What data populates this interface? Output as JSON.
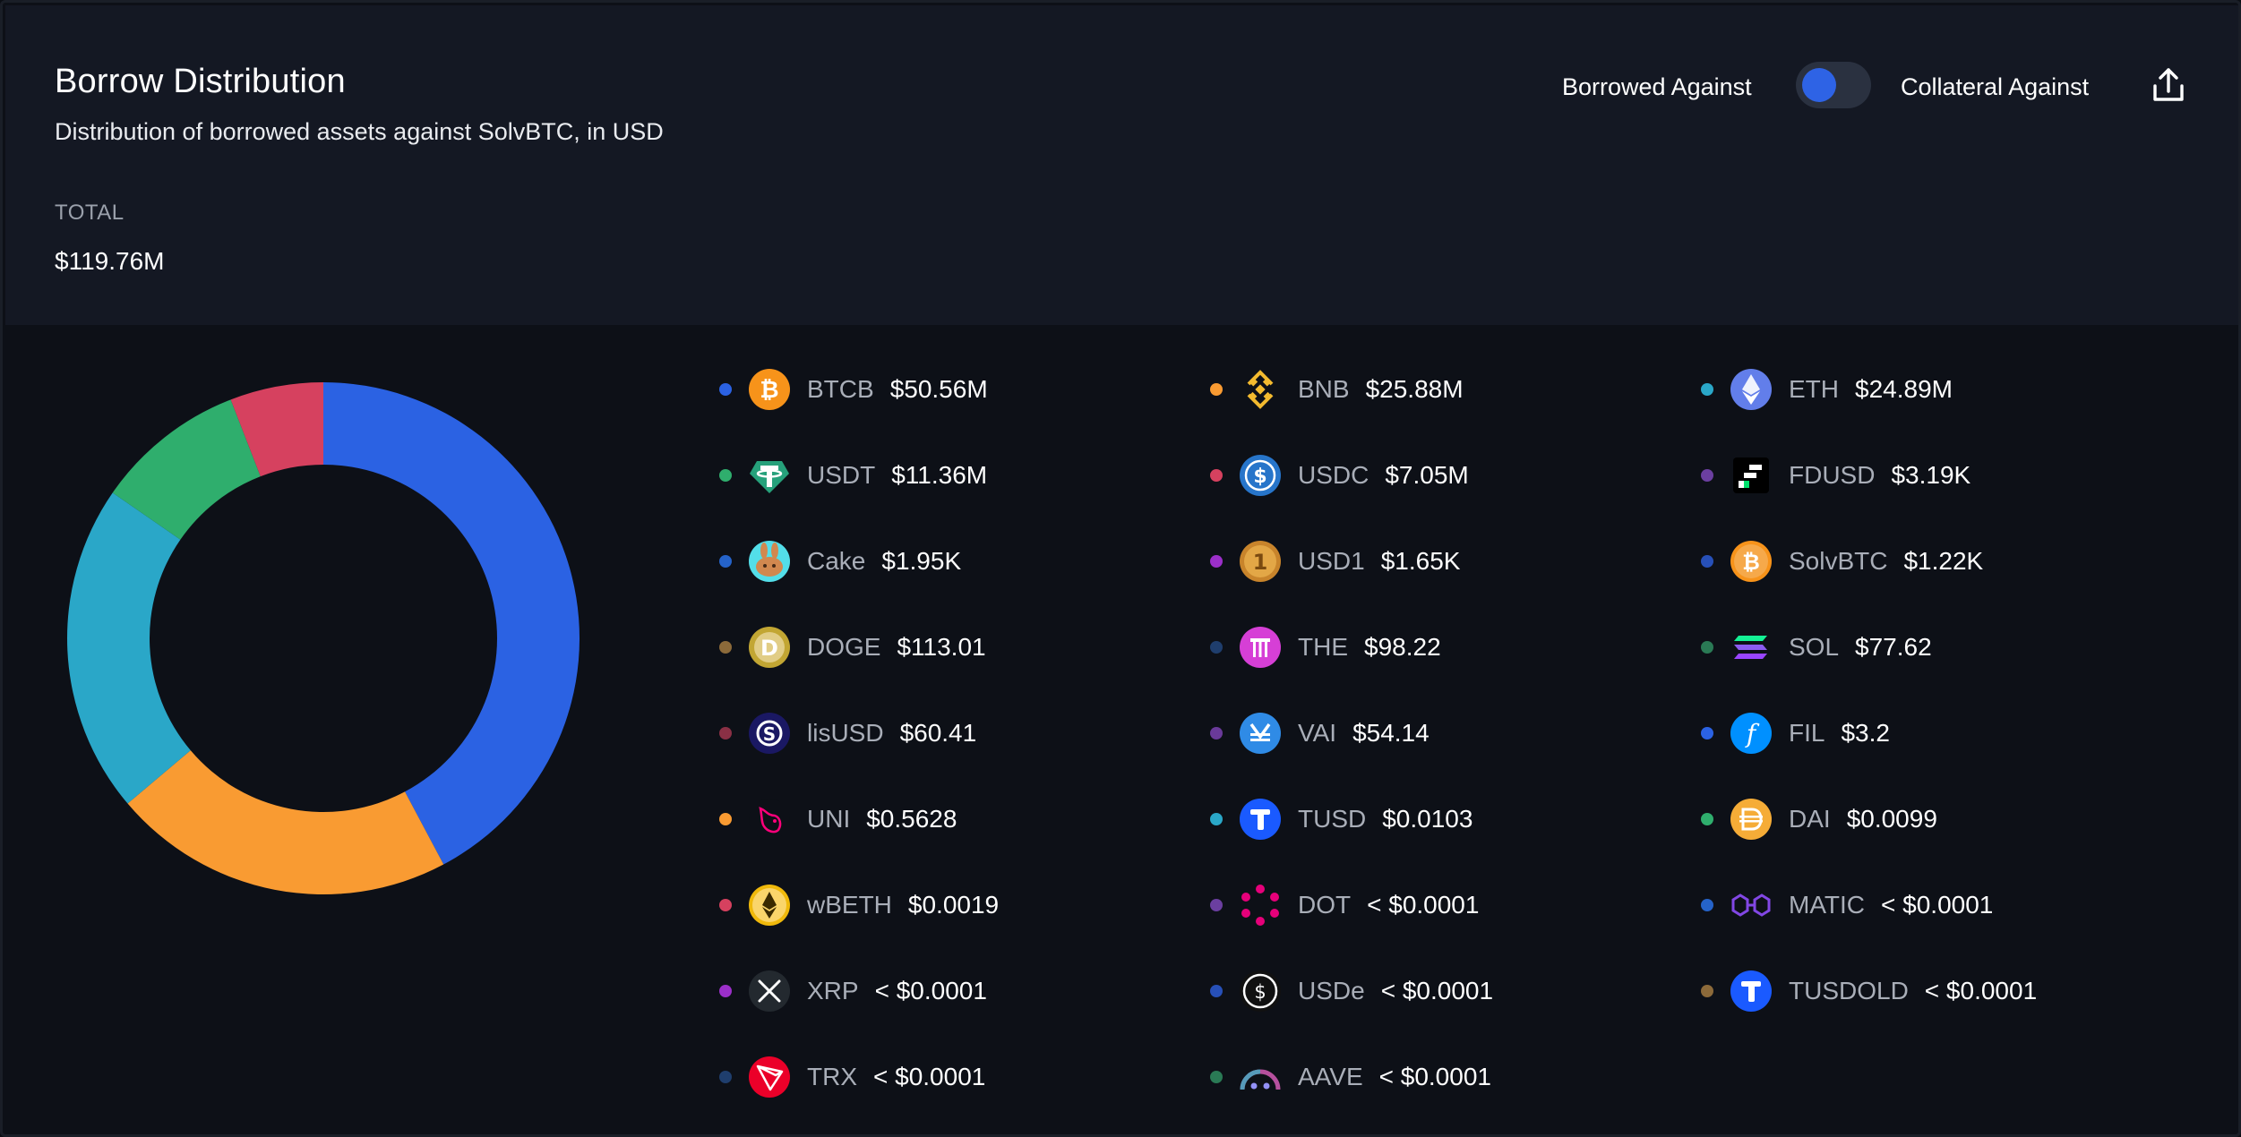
{
  "header": {
    "title": "Borrow Distribution",
    "subtitle": "Distribution of borrowed assets against SolvBTC, in USD",
    "total_label": "TOTAL",
    "total_value": "$119.76M"
  },
  "toggle": {
    "left_label": "Borrowed Against",
    "right_label": "Collateral Against",
    "state": "borrowed",
    "knob_color": "#2e63e5"
  },
  "export": {
    "icon": "share-upload-icon"
  },
  "chart_data": {
    "type": "pie",
    "style": "donut",
    "total": "$119.76M",
    "slices": [
      {
        "name": "BTCB",
        "value": 50.56,
        "color": "#2b62e3"
      },
      {
        "name": "BNB",
        "value": 25.88,
        "color": "#f99b32"
      },
      {
        "name": "ETH",
        "value": 24.89,
        "color": "#2aa7c8"
      },
      {
        "name": "USDT",
        "value": 11.36,
        "color": "#2fae6d"
      },
      {
        "name": "USDC",
        "value": 7.05,
        "color": "#d6415f"
      }
    ]
  },
  "legend": [
    {
      "symbol": "BTCB",
      "value": "$50.56M",
      "dot": "#2b62e3",
      "icon": "btcb-icon"
    },
    {
      "symbol": "BNB",
      "value": "$25.88M",
      "dot": "#f99b32",
      "icon": "bnb-icon"
    },
    {
      "symbol": "ETH",
      "value": "$24.89M",
      "dot": "#2aa7c8",
      "icon": "eth-icon"
    },
    {
      "symbol": "USDT",
      "value": "$11.36M",
      "dot": "#2fae6d",
      "icon": "usdt-icon"
    },
    {
      "symbol": "USDC",
      "value": "$7.05M",
      "dot": "#d6415f",
      "icon": "usdc-icon"
    },
    {
      "symbol": "FDUSD",
      "value": "$3.19K",
      "dot": "#6b3fa0",
      "icon": "fdusd-icon"
    },
    {
      "symbol": "Cake",
      "value": "$1.95K",
      "dot": "#2563c9",
      "icon": "cake-icon"
    },
    {
      "symbol": "USD1",
      "value": "$1.65K",
      "dot": "#9b2fc9",
      "icon": "usd1-icon"
    },
    {
      "symbol": "SolvBTC",
      "value": "$1.22K",
      "dot": "#2750b8",
      "icon": "solvbtc-icon"
    },
    {
      "symbol": "DOGE",
      "value": "$113.01",
      "dot": "#8c6a3a",
      "icon": "doge-icon"
    },
    {
      "symbol": "THE",
      "value": "$98.22",
      "dot": "#1f3e6d",
      "icon": "the-icon"
    },
    {
      "symbol": "SOL",
      "value": "$77.62",
      "dot": "#2a7a55",
      "icon": "sol-icon"
    },
    {
      "symbol": "lisUSD",
      "value": "$60.41",
      "dot": "#8a3045",
      "icon": "lisusd-icon"
    },
    {
      "symbol": "VAI",
      "value": "$54.14",
      "dot": "#6a3a9a",
      "icon": "vai-icon"
    },
    {
      "symbol": "FIL",
      "value": "$3.2",
      "dot": "#2b62e3",
      "icon": "fil-icon"
    },
    {
      "symbol": "UNI",
      "value": "$0.5628",
      "dot": "#f99b32",
      "icon": "uni-icon"
    },
    {
      "symbol": "TUSD",
      "value": "$0.0103",
      "dot": "#2aa7c8",
      "icon": "tusd-icon"
    },
    {
      "symbol": "DAI",
      "value": "$0.0099",
      "dot": "#2fae6d",
      "icon": "dai-icon"
    },
    {
      "symbol": "wBETH",
      "value": "$0.0019",
      "dot": "#d6415f",
      "icon": "wbeth-icon"
    },
    {
      "symbol": "DOT",
      "value": "< $0.0001",
      "dot": "#6b3fa0",
      "icon": "dot-icon"
    },
    {
      "symbol": "MATIC",
      "value": "< $0.0001",
      "dot": "#2563c9",
      "icon": "matic-icon"
    },
    {
      "symbol": "XRP",
      "value": "< $0.0001",
      "dot": "#9b2fc9",
      "icon": "xrp-icon"
    },
    {
      "symbol": "USDe",
      "value": "< $0.0001",
      "dot": "#2750b8",
      "icon": "usde-icon"
    },
    {
      "symbol": "TUSDOLD",
      "value": "< $0.0001",
      "dot": "#8c6a3a",
      "icon": "tusdold-icon"
    },
    {
      "symbol": "TRX",
      "value": "< $0.0001",
      "dot": "#1f3e6d",
      "icon": "trx-icon"
    },
    {
      "symbol": "AAVE",
      "value": "< $0.0001",
      "dot": "#2a7a55",
      "icon": "aave-icon"
    }
  ]
}
